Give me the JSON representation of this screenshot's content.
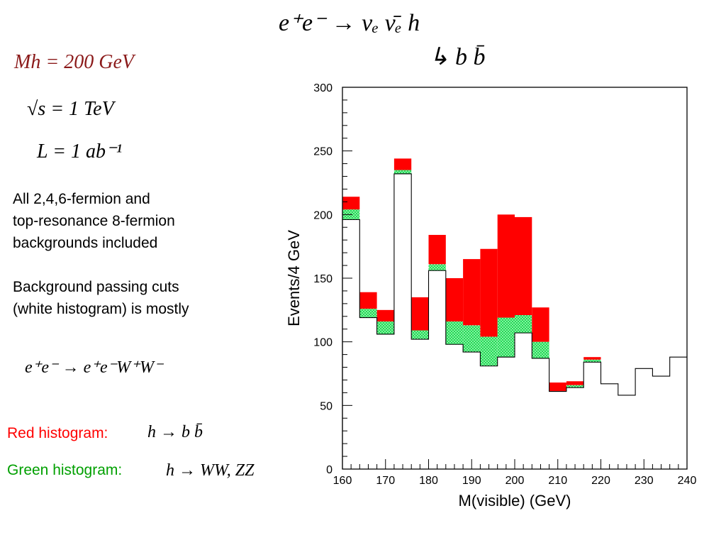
{
  "title": {
    "reaction": "e⁺e⁻ → νₑ ν̄ₑ h",
    "decay": "↳ b b̄"
  },
  "params": {
    "mass": "Mh = 200 GeV",
    "sqrt_s": "√s = 1 TeV",
    "lumi": "L = 1 ab⁻¹"
  },
  "notes": {
    "line1": "All 2,4,6-fermion and",
    "line2": "top-resonance 8-fermion",
    "line3": "backgrounds included",
    "line4": "Background passing cuts",
    "line5": "(white histogram) is mostly",
    "bkg_process": "e⁺e⁻ → e⁺e⁻W⁺W⁻"
  },
  "legend": {
    "red_label": "Red histogram:",
    "red_process": "h → b b̄",
    "green_label": "Green histogram:",
    "green_process": "h → WW, ZZ"
  },
  "colors": {
    "signal_bb": "#ff0000",
    "signal_ww_zz": "#22dd55",
    "background": "#ffffff"
  },
  "chart_data": {
    "type": "bar",
    "xlabel": "M(visible) (GeV)",
    "ylabel": "Events/4 GeV",
    "xlim": [
      160,
      240
    ],
    "ylim": [
      0,
      300
    ],
    "xticks": [
      160,
      170,
      180,
      190,
      200,
      210,
      220,
      230,
      240
    ],
    "yticks": [
      0,
      50,
      100,
      150,
      200,
      250,
      300
    ],
    "bin_edges": [
      160,
      164,
      168,
      172,
      176,
      180,
      184,
      188,
      192,
      196,
      200,
      204,
      208,
      212,
      216,
      220,
      224,
      228,
      232,
      236,
      240
    ],
    "series": [
      {
        "name": "Background passing cuts",
        "values": [
          196,
          119,
          106,
          232,
          102,
          156,
          98,
          92,
          81,
          88,
          107,
          87,
          61,
          64,
          84,
          67,
          58,
          79,
          73,
          88
        ]
      },
      {
        "name": "Red histogram: h → b b̄",
        "values": [
          10,
          13,
          9,
          9,
          26,
          23,
          34,
          52,
          69,
          81,
          77,
          27,
          7,
          3,
          2,
          0,
          0,
          0,
          0,
          0
        ]
      },
      {
        "name": "Green histogram: h → WW, ZZ",
        "values": [
          8,
          7,
          10,
          3,
          7,
          5,
          18,
          21,
          23,
          31,
          14,
          13,
          0,
          2,
          2,
          0,
          0,
          0,
          0,
          0
        ]
      }
    ]
  }
}
